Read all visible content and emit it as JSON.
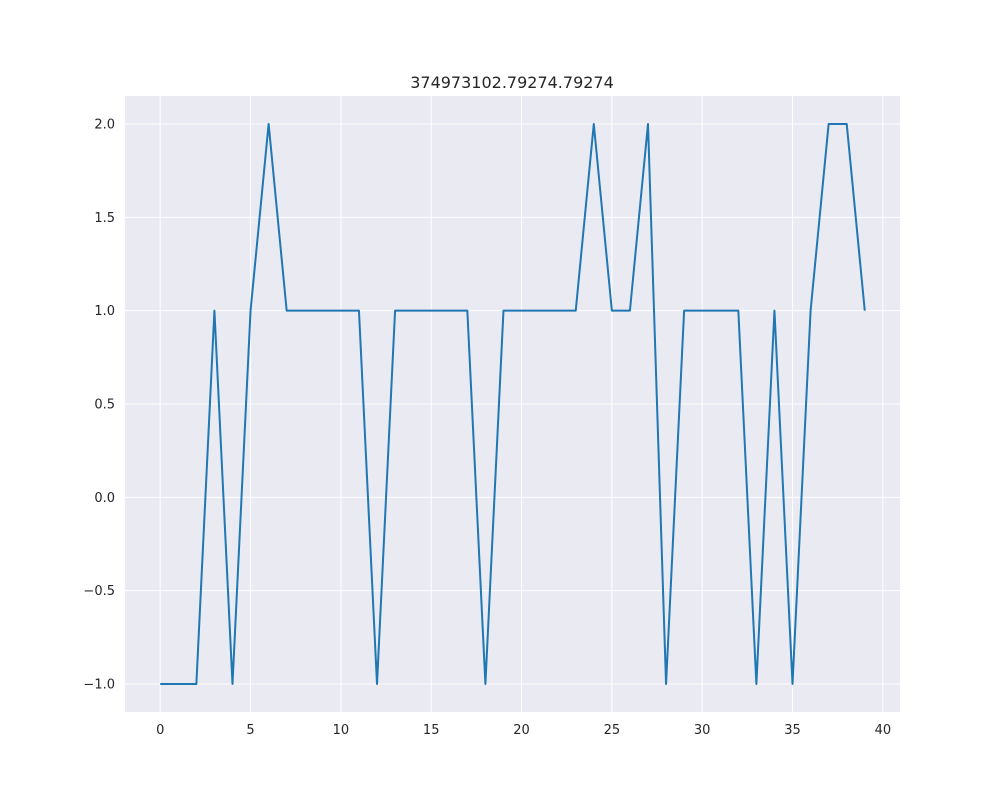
{
  "chart_data": {
    "type": "line",
    "title": "374973102.79274.79274",
    "xlabel": "",
    "ylabel": "",
    "x": [
      0,
      1,
      2,
      3,
      4,
      5,
      6,
      7,
      8,
      9,
      10,
      11,
      12,
      13,
      14,
      15,
      16,
      17,
      18,
      19,
      20,
      21,
      22,
      23,
      24,
      25,
      26,
      27,
      28,
      29,
      30,
      31,
      32,
      33,
      34,
      35,
      36,
      37,
      38,
      39
    ],
    "series": [
      {
        "values": [
          -1,
          -1,
          -1,
          1,
          -1,
          1,
          2,
          1,
          1,
          1,
          1,
          1,
          -1,
          1,
          1,
          1,
          1,
          1,
          -1,
          1,
          1,
          1,
          1,
          1,
          2,
          1,
          1,
          2,
          -1,
          1,
          1,
          1,
          1,
          -1,
          1,
          -1,
          1,
          2,
          2,
          1
        ],
        "color": "#1f77b4"
      }
    ],
    "xlim": [
      -1.95,
      40.95
    ],
    "ylim": [
      -1.15,
      2.15
    ],
    "xticks": [
      0,
      5,
      10,
      15,
      20,
      25,
      30,
      35,
      40
    ],
    "yticks": [
      -1.0,
      -0.5,
      0.0,
      0.5,
      1.0,
      1.5,
      2.0
    ],
    "xtick_labels": [
      "0",
      "5",
      "10",
      "15",
      "20",
      "25",
      "30",
      "35",
      "40"
    ],
    "ytick_labels": [
      "−1.0",
      "−0.5",
      "0.0",
      "0.5",
      "1.0",
      "1.5",
      "2.0"
    ],
    "grid": true,
    "background_color": "#eaeaf2",
    "grid_color": "#ffffff"
  }
}
